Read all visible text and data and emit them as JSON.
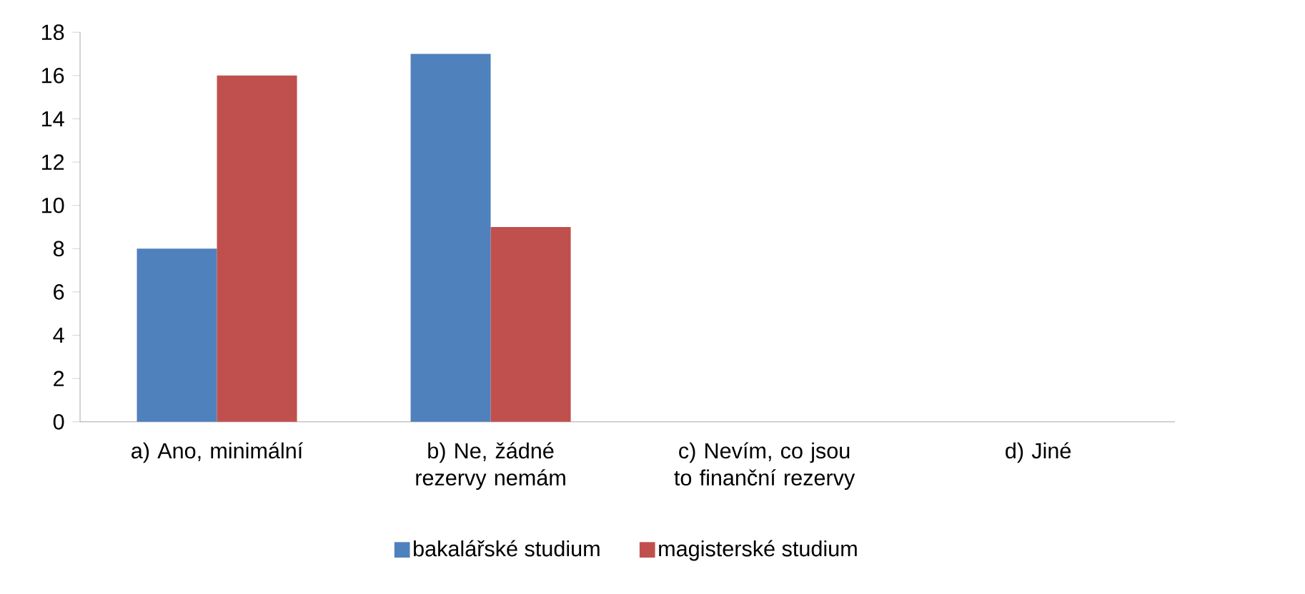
{
  "chart_data": {
    "type": "bar",
    "categories": [
      "a) Ano, minimální",
      "b) Ne, žádné rezervy nemám",
      "c) Nevím, co jsou to finanční rezervy",
      "d) Jiné"
    ],
    "series": [
      {
        "name": "bakalářské studium",
        "color": "#4f81bd",
        "values": [
          8,
          17,
          0,
          0
        ]
      },
      {
        "name": "magisterské studium",
        "color": "#c0504d",
        "values": [
          16,
          9,
          0,
          0
        ]
      }
    ],
    "ylim": [
      0,
      18
    ],
    "yticks": [
      0,
      2,
      4,
      6,
      8,
      10,
      12,
      14,
      16,
      18
    ],
    "grid": false,
    "legend": "bottom"
  }
}
